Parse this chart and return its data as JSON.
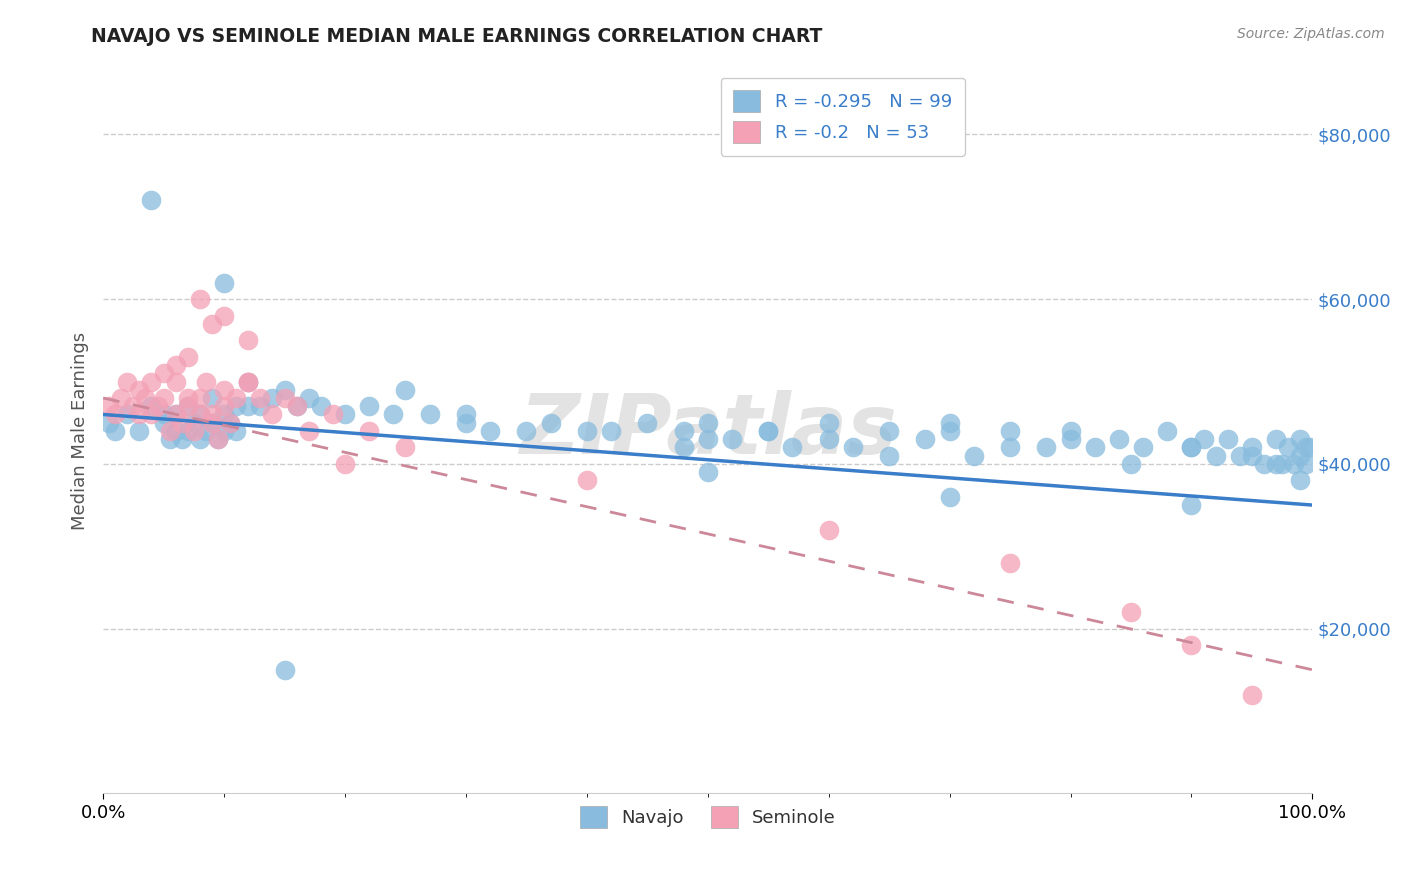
{
  "title": "NAVAJO VS SEMINOLE MEDIAN MALE EARNINGS CORRELATION CHART",
  "source_text": "Source: ZipAtlas.com",
  "ylabel": "Median Male Earnings",
  "xlim": [
    0.0,
    1.0
  ],
  "ylim": [
    0,
    88000
  ],
  "yticks": [
    20000,
    40000,
    60000,
    80000
  ],
  "ytick_labels": [
    "$20,000",
    "$40,000",
    "$60,000",
    "$80,000"
  ],
  "xtick_labels": [
    "0.0%",
    "100.0%"
  ],
  "navajo_color": "#88bbdd",
  "seminole_color": "#f4a0b5",
  "navajo_R": -0.295,
  "navajo_N": 99,
  "seminole_R": -0.2,
  "seminole_N": 53,
  "navajo_line_color": "#3a7dc9",
  "seminole_line_color": "#cc8899",
  "background_color": "#ffffff",
  "grid_color": "#cccccc",
  "watermark": "ZIPatlas",
  "navajo_x": [
    0.005,
    0.01,
    0.02,
    0.03,
    0.04,
    0.04,
    0.05,
    0.05,
    0.055,
    0.06,
    0.06,
    0.065,
    0.07,
    0.07,
    0.075,
    0.08,
    0.08,
    0.085,
    0.09,
    0.09,
    0.095,
    0.1,
    0.1,
    0.105,
    0.11,
    0.11,
    0.12,
    0.12,
    0.13,
    0.14,
    0.15,
    0.16,
    0.17,
    0.18,
    0.2,
    0.22,
    0.24,
    0.25,
    0.27,
    0.3,
    0.32,
    0.35,
    0.37,
    0.4,
    0.42,
    0.45,
    0.48,
    0.5,
    0.52,
    0.55,
    0.57,
    0.6,
    0.62,
    0.65,
    0.68,
    0.7,
    0.72,
    0.75,
    0.78,
    0.8,
    0.82,
    0.84,
    0.86,
    0.88,
    0.9,
    0.91,
    0.92,
    0.93,
    0.94,
    0.95,
    0.96,
    0.97,
    0.975,
    0.98,
    0.985,
    0.99,
    0.99,
    0.995,
    0.995,
    0.998,
    0.5,
    0.48,
    0.55,
    0.6,
    0.65,
    0.7,
    0.75,
    0.8,
    0.85,
    0.9,
    0.95,
    0.97,
    0.99,
    0.1,
    0.3,
    0.5,
    0.7,
    0.9,
    0.15
  ],
  "navajo_y": [
    45000,
    44000,
    46000,
    44000,
    47000,
    72000,
    45000,
    46000,
    43000,
    44000,
    46000,
    43000,
    47000,
    44000,
    45000,
    46000,
    43000,
    44000,
    48000,
    45000,
    43000,
    46000,
    44000,
    45000,
    47000,
    44000,
    50000,
    47000,
    47000,
    48000,
    49000,
    47000,
    48000,
    47000,
    46000,
    47000,
    46000,
    49000,
    46000,
    46000,
    44000,
    44000,
    45000,
    44000,
    44000,
    45000,
    44000,
    45000,
    43000,
    44000,
    42000,
    45000,
    42000,
    44000,
    43000,
    45000,
    41000,
    44000,
    42000,
    44000,
    42000,
    43000,
    42000,
    44000,
    42000,
    43000,
    41000,
    43000,
    41000,
    42000,
    40000,
    43000,
    40000,
    42000,
    40000,
    43000,
    41000,
    42000,
    40000,
    42000,
    43000,
    42000,
    44000,
    43000,
    41000,
    44000,
    42000,
    43000,
    40000,
    42000,
    41000,
    40000,
    38000,
    62000,
    45000,
    39000,
    36000,
    35000,
    15000
  ],
  "seminole_x": [
    0.005,
    0.01,
    0.015,
    0.02,
    0.025,
    0.03,
    0.035,
    0.04,
    0.045,
    0.05,
    0.055,
    0.06,
    0.065,
    0.07,
    0.075,
    0.08,
    0.085,
    0.09,
    0.095,
    0.1,
    0.105,
    0.11,
    0.12,
    0.13,
    0.14,
    0.15,
    0.16,
    0.17,
    0.19,
    0.22,
    0.25,
    0.12,
    0.08,
    0.1,
    0.09,
    0.07,
    0.06,
    0.05,
    0.04,
    0.03,
    0.06,
    0.08,
    0.1,
    0.12,
    0.09,
    0.07,
    0.4,
    0.6,
    0.75,
    0.85,
    0.9,
    0.95,
    0.2
  ],
  "seminole_y": [
    47000,
    46000,
    48000,
    50000,
    47000,
    46000,
    48000,
    46000,
    47000,
    48000,
    44000,
    46000,
    45000,
    47000,
    44000,
    46000,
    50000,
    45000,
    43000,
    47000,
    45000,
    48000,
    50000,
    48000,
    46000,
    48000,
    47000,
    44000,
    46000,
    44000,
    42000,
    55000,
    60000,
    58000,
    57000,
    53000,
    52000,
    51000,
    50000,
    49000,
    50000,
    48000,
    49000,
    50000,
    46000,
    48000,
    38000,
    32000,
    28000,
    22000,
    18000,
    12000,
    40000
  ]
}
